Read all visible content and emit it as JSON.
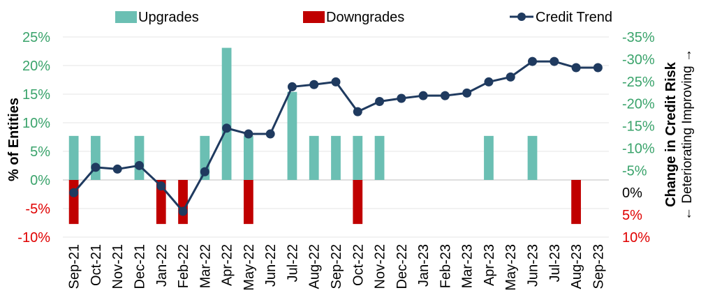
{
  "chart_data": {
    "type": "bar+line",
    "categories": [
      "Sep-21",
      "Oct-21",
      "Nov-21",
      "Dec-21",
      "Jan-22",
      "Feb-22",
      "Mar-22",
      "Apr-22",
      "May-22",
      "Jun-22",
      "Jul-22",
      "Aug-22",
      "Sep-22",
      "Oct-22",
      "Nov-22",
      "Dec-22",
      "Jan-23",
      "Feb-23",
      "Mar-23",
      "Apr-23",
      "May-23",
      "Jun-23",
      "Jul-23",
      "Aug-23",
      "Sep-23"
    ],
    "series": [
      {
        "name": "Upgrades",
        "type": "bar",
        "axis": "left",
        "color": "#6bbfb3",
        "values": [
          7.7,
          7.7,
          0,
          7.7,
          0,
          0,
          7.7,
          23.1,
          7.7,
          0,
          15.4,
          7.7,
          7.7,
          7.7,
          7.7,
          0,
          0,
          0,
          0,
          7.7,
          0,
          7.7,
          0,
          0,
          0
        ]
      },
      {
        "name": "Downgrades",
        "type": "bar",
        "axis": "left",
        "color": "#c00000",
        "values": [
          -7.7,
          0,
          0,
          0,
          -7.7,
          -7.7,
          0,
          0,
          -7.7,
          0,
          0,
          0,
          0,
          -7.7,
          0,
          0,
          0,
          0,
          0,
          0,
          0,
          0,
          0,
          -7.7,
          0
        ]
      },
      {
        "name": "Credit Trend",
        "type": "line",
        "axis": "right",
        "color": "#1f3a5f",
        "values": [
          0,
          -5.7,
          -5.3,
          -6.1,
          -1.5,
          4.2,
          -4.7,
          -14.5,
          -13.2,
          -13.2,
          -23.8,
          -24.3,
          -24.9,
          -18.2,
          -20.5,
          -21.2,
          -21.8,
          -21.8,
          -22.4,
          -24.9,
          -26.0,
          -29.5,
          -29.5,
          -28.1,
          -28.1
        ]
      }
    ],
    "left_axis": {
      "title": "% of Entities",
      "ylim": [
        -10,
        25
      ],
      "ticks": [
        -10,
        -5,
        0,
        5,
        10,
        15,
        20,
        25
      ],
      "tick_labels": [
        "-10%",
        "-5%",
        "0%",
        "5%",
        "10%",
        "15%",
        "20%",
        "25%"
      ],
      "positive_color": "#3aa36b",
      "negative_color": "#e00000"
    },
    "right_axis": {
      "title": "Change in Credit Risk",
      "subtitle": "← Deteriorating Improving →",
      "ylim": [
        10,
        -35
      ],
      "ticks": [
        10,
        5,
        0,
        -5,
        -10,
        -15,
        -20,
        -25,
        -30,
        -35
      ],
      "tick_labels": [
        "10%",
        "5%",
        "0%",
        "-5%",
        "-10%",
        "-15%",
        "-20%",
        "-25%",
        "-30%",
        "-35%"
      ],
      "positive_color": "#e00000",
      "zero_color": "#000000",
      "negative_color": "#3aa36b"
    },
    "legend": {
      "placement": "top",
      "items": [
        "Upgrades",
        "Downgrades",
        "Credit Trend"
      ]
    },
    "grid": true
  }
}
